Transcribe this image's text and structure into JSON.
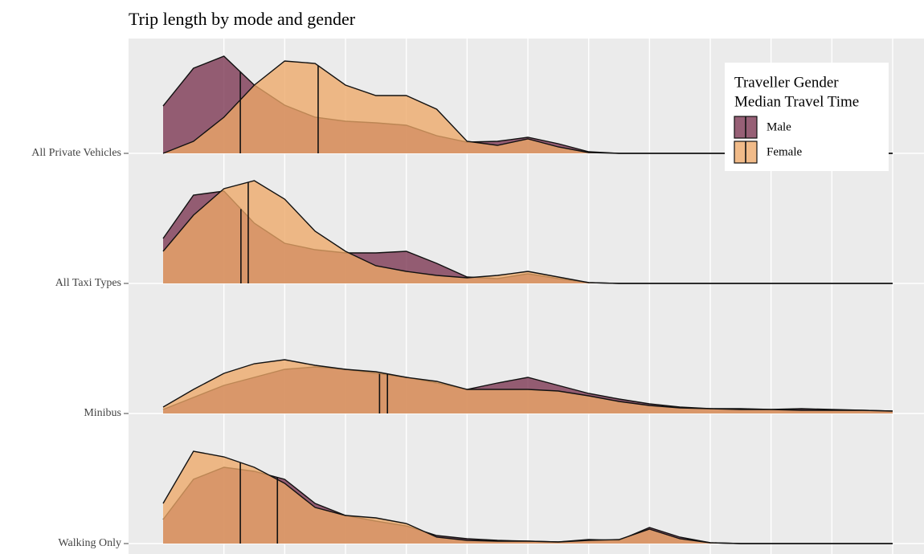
{
  "chart_data": {
    "type": "ridgeline",
    "title": "Trip length by mode and gender",
    "categories": [
      "All Private Vehicles",
      "All Taxi Types",
      "Minibus",
      "Walking Only"
    ],
    "x": [
      0,
      0.5,
      1,
      1.5,
      2,
      2.5,
      3,
      3.5,
      4,
      4.5,
      5,
      5.5,
      6,
      6.5,
      7,
      7.5,
      8,
      8.5,
      9,
      9.5,
      10,
      10.5,
      11,
      11.5,
      12
    ],
    "xlim": [
      0,
      12
    ],
    "xticks": [
      1,
      2,
      3,
      4,
      5,
      6,
      7,
      8,
      9,
      10,
      11,
      12
    ],
    "grid": true,
    "legend_title": [
      "Traveller Gender",
      "Median Travel Time"
    ],
    "legend_position": "top-right",
    "series": [
      {
        "name": "Male",
        "color": "#7a3350",
        "values": [
          [
            0.59,
            1.06,
            1.21,
            0.85,
            0.6,
            0.45,
            0.4,
            0.38,
            0.35,
            0.22,
            0.14,
            0.15,
            0.2,
            0.12,
            0.02,
            0,
            0,
            0,
            0,
            0,
            0,
            0,
            0,
            0,
            0
          ],
          [
            0.56,
            1.1,
            1.15,
            0.75,
            0.5,
            0.42,
            0.38,
            0.38,
            0.4,
            0.25,
            0.08,
            0.06,
            0.12,
            0.06,
            0.01,
            0,
            0,
            0,
            0,
            0,
            0,
            0,
            0,
            0,
            0
          ],
          [
            0.05,
            0.2,
            0.35,
            0.45,
            0.55,
            0.58,
            0.55,
            0.5,
            0.45,
            0.38,
            0.3,
            0.38,
            0.45,
            0.35,
            0.25,
            0.18,
            0.12,
            0.08,
            0.06,
            0.06,
            0.05,
            0.06,
            0.05,
            0.04,
            0.03
          ],
          [
            0.3,
            0.8,
            0.95,
            0.9,
            0.8,
            0.5,
            0.35,
            0.28,
            0.22,
            0.1,
            0.06,
            0.04,
            0.03,
            0.02,
            0.05,
            0.04,
            0.2,
            0.08,
            0.01,
            0,
            0,
            0,
            0,
            0,
            0
          ]
        ],
        "medians": [
          1.27,
          1.28,
          3.56,
          1.88
        ]
      },
      {
        "name": "Female",
        "color": "#eda868",
        "values": [
          [
            0,
            0.15,
            0.45,
            0.85,
            1.15,
            1.12,
            0.85,
            0.72,
            0.72,
            0.55,
            0.15,
            0.1,
            0.18,
            0.08,
            0.01,
            0,
            0,
            0,
            0,
            0,
            0,
            0,
            0,
            0,
            0
          ],
          [
            0.4,
            0.85,
            1.18,
            1.28,
            1.05,
            0.65,
            0.4,
            0.22,
            0.15,
            0.1,
            0.07,
            0.1,
            0.15,
            0.08,
            0.01,
            0,
            0,
            0,
            0,
            0,
            0,
            0,
            0,
            0,
            0
          ],
          [
            0.08,
            0.3,
            0.5,
            0.62,
            0.67,
            0.6,
            0.55,
            0.52,
            0.45,
            0.4,
            0.3,
            0.3,
            0.3,
            0.28,
            0.22,
            0.15,
            0.1,
            0.07,
            0.06,
            0.05,
            0.05,
            0.04,
            0.04,
            0.04,
            0.03
          ],
          [
            0.5,
            1.15,
            1.08,
            0.95,
            0.75,
            0.45,
            0.35,
            0.32,
            0.25,
            0.08,
            0.04,
            0.03,
            0.03,
            0.02,
            0.04,
            0.05,
            0.18,
            0.06,
            0.01,
            0,
            0,
            0,
            0,
            0,
            0
          ]
        ],
        "medians": [
          2.55,
          1.4,
          3.69,
          1.27
        ]
      }
    ]
  }
}
